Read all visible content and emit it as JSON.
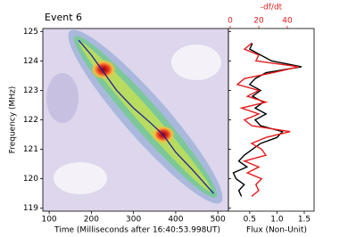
{
  "chart_data": [
    {
      "type": "line",
      "title": "Event 6",
      "xlabel": "Time (Milliseconds after 16:40:53.998UT)",
      "ylabel": "Frequency (MHz)",
      "x": [
        170,
        200,
        230,
        260,
        300,
        340,
        370,
        400,
        440,
        490
      ],
      "values": [
        124.7,
        124.2,
        123.6,
        123.0,
        122.4,
        121.9,
        121.5,
        120.9,
        120.3,
        119.5
      ],
      "color": "#1f1f9a",
      "xlim": [
        85,
        525
      ],
      "xticks": [
        100,
        200,
        300,
        400,
        500
      ],
      "ylim": [
        118.9,
        125.1
      ],
      "yticks": [
        119,
        120,
        121,
        122,
        123,
        124,
        125
      ]
    },
    {
      "type": "line",
      "xlabel": "Flux (Non-Unit)",
      "x2label": "-df/dt",
      "x2color": "#e41a1c",
      "y": [
        124.6,
        124.4,
        124.2,
        124.0,
        123.8,
        123.6,
        123.4,
        123.2,
        123.0,
        122.8,
        122.6,
        122.4,
        122.2,
        122.0,
        121.8,
        121.6,
        121.4,
        121.2,
        121.0,
        120.8,
        120.6,
        120.4,
        120.2,
        120.0,
        119.8,
        119.6,
        119.4
      ],
      "series": [
        {
          "color": "#000000",
          "values": [
            0.55,
            0.5,
            0.7,
            0.9,
            1.45,
            0.8,
            0.6,
            0.5,
            0.7,
            0.55,
            0.75,
            0.6,
            0.8,
            0.6,
            0.7,
            1.1,
            1.0,
            0.7,
            0.55,
            0.4,
            0.3,
            0.45,
            0.2,
            0.25,
            0.4,
            0.3,
            0.35
          ]
        },
        {
          "color": "#e41a1c",
          "axis": "x2",
          "values": [
            15,
            10,
            20,
            18,
            48,
            30,
            10,
            5,
            20,
            12,
            25,
            8,
            20,
            10,
            15,
            42,
            25,
            15,
            22,
            25,
            10,
            20,
            12,
            22,
            18,
            20,
            15
          ]
        }
      ],
      "xlim": [
        0.11,
        1.68
      ],
      "xticks": [
        0.5,
        {
          "value": 1,
          "label": "1.0"
        },
        1.5
      ],
      "x2lim": [
        -1.25,
        58.75
      ],
      "x2ticks": [
        0,
        20,
        40
      ],
      "ylim": [
        118.9,
        125.1
      ]
    }
  ]
}
